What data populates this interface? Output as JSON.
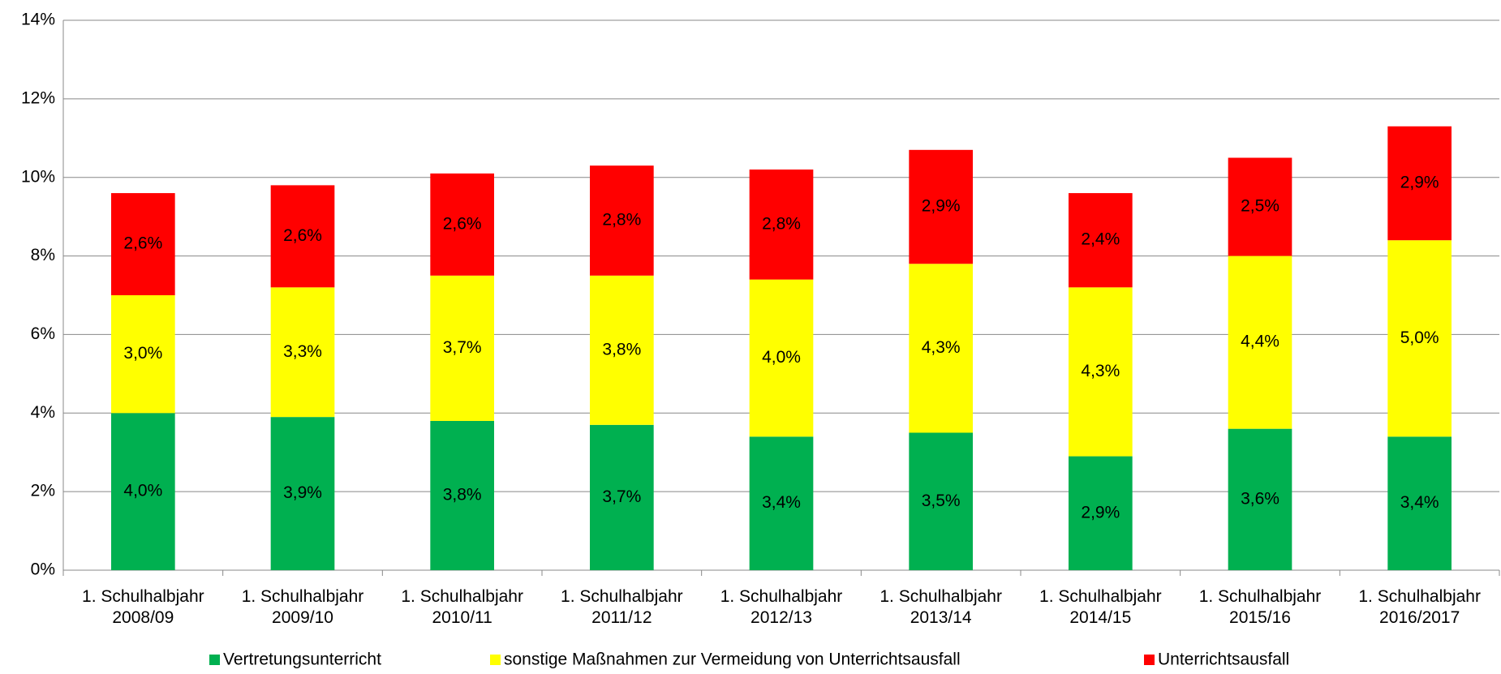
{
  "chart_data": {
    "type": "stacked-bar",
    "categories": [
      [
        "1. Schulhalbjahr",
        "2008/09"
      ],
      [
        "1. Schulhalbjahr",
        "2009/10"
      ],
      [
        "1. Schulhalbjahr",
        "2010/11"
      ],
      [
        "1. Schulhalbjahr",
        "2011/12"
      ],
      [
        "1. Schulhalbjahr",
        "2012/13"
      ],
      [
        "1. Schulhalbjahr",
        "2013/14"
      ],
      [
        "1. Schulhalbjahr",
        "2014/15"
      ],
      [
        "1. Schulhalbjahr",
        "2015/16"
      ],
      [
        "1. Schulhalbjahr",
        "2016/2017"
      ]
    ],
    "series": [
      {
        "name": "Vertretungsunterricht",
        "color": "#00b050",
        "values": [
          4.0,
          3.9,
          3.8,
          3.7,
          3.4,
          3.5,
          2.9,
          3.6,
          3.4
        ],
        "value_labels": [
          "4,0%",
          "3,9%",
          "3,8%",
          "3,7%",
          "3,4%",
          "3,5%",
          "2,9%",
          "3,6%",
          "3,4%"
        ]
      },
      {
        "name": "sonstige Maßnahmen zur Vermeidung von Unterrichtsausfall",
        "color": "#ffff00",
        "values": [
          3.0,
          3.3,
          3.7,
          3.8,
          4.0,
          4.3,
          4.3,
          4.4,
          5.0
        ],
        "value_labels": [
          "3,0%",
          "3,3%",
          "3,7%",
          "3,8%",
          "4,0%",
          "4,3%",
          "4,3%",
          "4,4%",
          "5,0%"
        ]
      },
      {
        "name": "Unterrichtsausfall",
        "color": "#ff0000",
        "values": [
          2.6,
          2.6,
          2.6,
          2.8,
          2.8,
          2.9,
          2.4,
          2.5,
          2.9
        ],
        "value_labels": [
          "2,6%",
          "2,6%",
          "2,6%",
          "2,8%",
          "2,8%",
          "2,9%",
          "2,4%",
          "2,5%",
          "2,9%"
        ]
      }
    ],
    "ylim": [
      0,
      14
    ],
    "yticks": [
      {
        "value": 0,
        "label": "0%"
      },
      {
        "value": 2,
        "label": "2%"
      },
      {
        "value": 4,
        "label": "4%"
      },
      {
        "value": 6,
        "label": "6%"
      },
      {
        "value": 8,
        "label": "8%"
      },
      {
        "value": 10,
        "label": "10%"
      },
      {
        "value": 12,
        "label": "12%"
      },
      {
        "value": 14,
        "label": "14%"
      }
    ],
    "grid": true,
    "legend": "bottom"
  }
}
